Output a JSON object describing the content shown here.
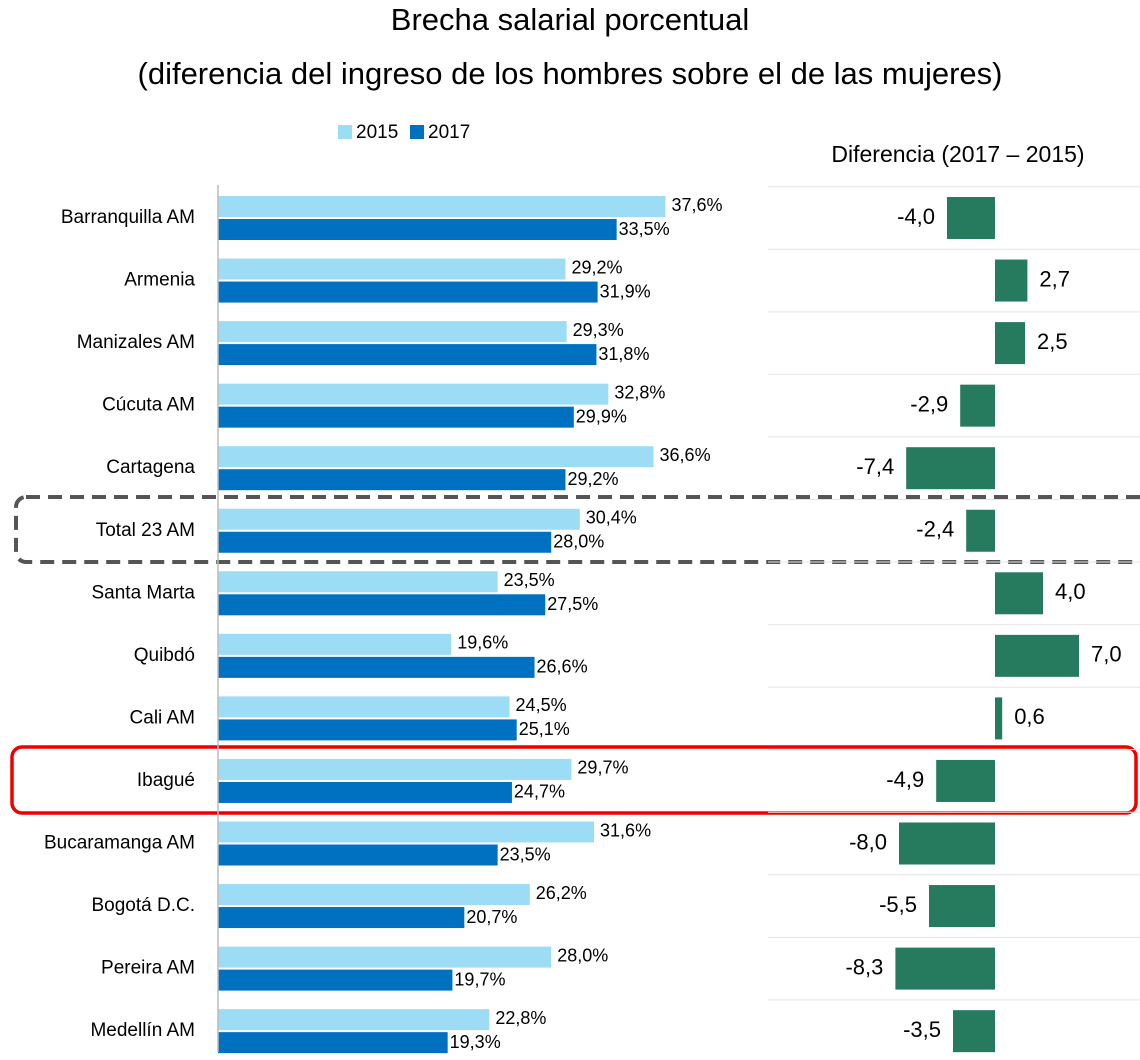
{
  "chart_data": [
    {
      "type": "hbar",
      "title": "Brecha salarial porcentual",
      "subtitle": "(diferencia del ingreso de los hombres sobre el de las mujeres)",
      "categories": [
        "Barranquilla AM",
        "Armenia",
        "Manizales AM",
        "Cúcuta AM",
        "Cartagena",
        "Total 23 AM",
        "Santa Marta",
        "Quibdó",
        "Cali AM",
        "Ibagué",
        "Bucaramanga AM",
        "Bogotá D.C.",
        "Pereira AM",
        "Medellín AM"
      ],
      "series": [
        {
          "name": "2015",
          "color": "#9ddcf5",
          "values": [
            37.6,
            29.2,
            29.3,
            32.8,
            36.6,
            30.4,
            23.5,
            19.6,
            24.5,
            29.7,
            31.6,
            26.2,
            28.0,
            22.8
          ],
          "value_labels": [
            "37,6%",
            "29,2%",
            "29,3%",
            "32,8%",
            "36,6%",
            "30,4%",
            "23,5%",
            "19,6%",
            "24,5%",
            "29,7%",
            "31,6%",
            "26,2%",
            "28,0%",
            "22,8%"
          ]
        },
        {
          "name": "2017",
          "color": "#0070c0",
          "values": [
            33.5,
            31.9,
            31.8,
            29.9,
            29.2,
            28.0,
            27.5,
            26.6,
            25.1,
            24.7,
            23.5,
            20.7,
            19.7,
            19.3
          ],
          "value_labels": [
            "33,5%",
            "31,9%",
            "31,8%",
            "29,9%",
            "29,2%",
            "28,0%",
            "27,5%",
            "26,6%",
            "25,1%",
            "24,7%",
            "23,5%",
            "20,7%",
            "19,7%",
            "19,3%"
          ]
        }
      ]
    },
    {
      "type": "diverging",
      "title": "Diferencia (2017 – 2015)",
      "color": "#267a5e",
      "values": [
        -4.0,
        2.7,
        2.5,
        -2.9,
        -7.4,
        -2.4,
        4.0,
        7.0,
        0.6,
        -4.9,
        -8.0,
        -5.5,
        -8.3,
        -3.5
      ],
      "value_labels": [
        "-4,0",
        "2,7",
        "2,5",
        "-2,9",
        "-7,4",
        "-2,4",
        "4,0",
        "7,0",
        "0,6",
        "-4,9",
        "-8,0",
        "-5,5",
        "-8,3",
        "-3,5"
      ]
    }
  ]
}
